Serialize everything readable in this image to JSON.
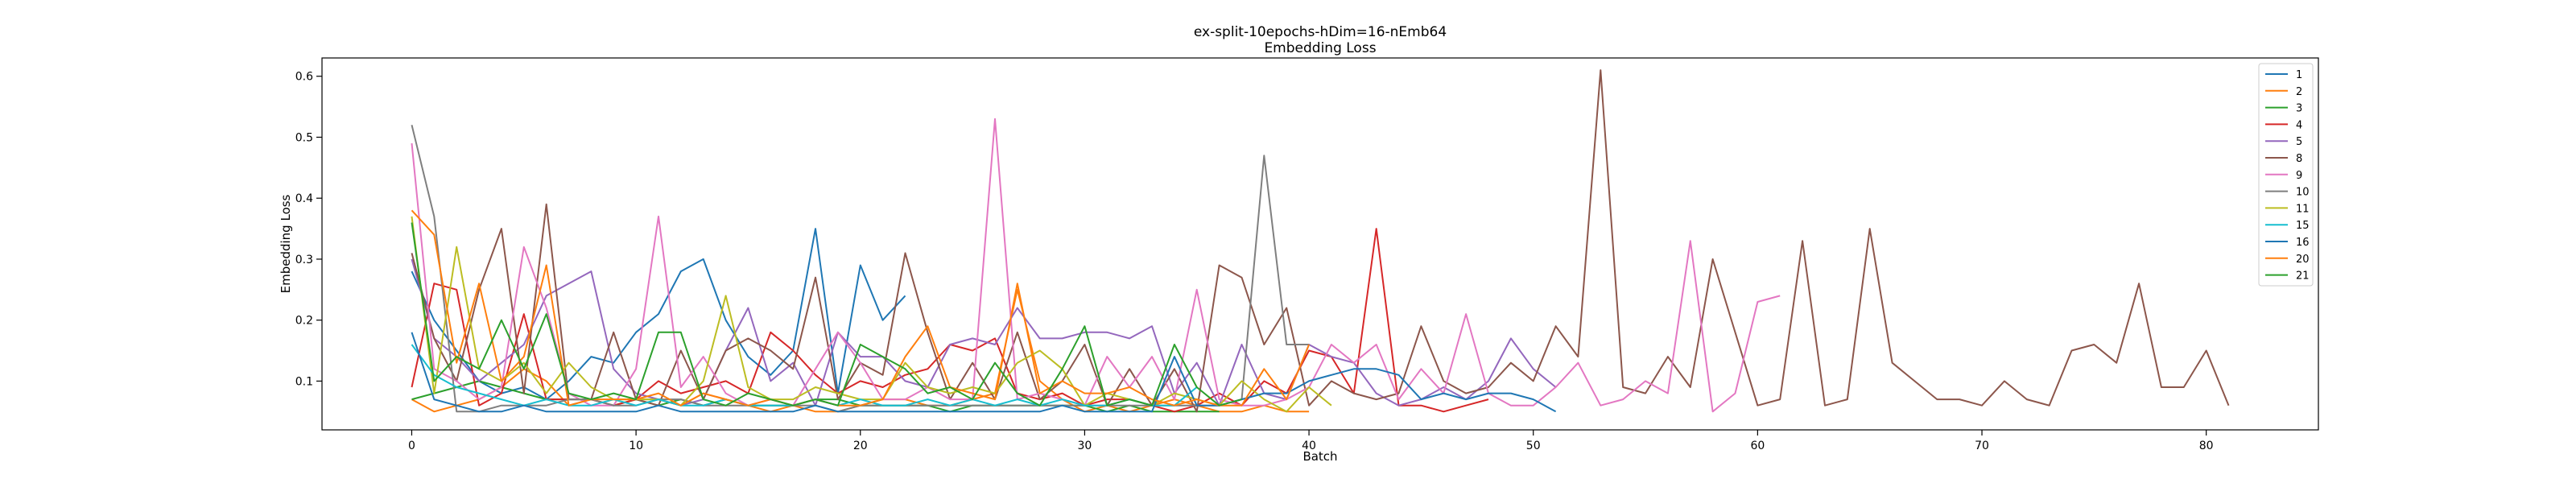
{
  "chart_data": {
    "type": "line",
    "title": "ex-split-10epochs-hDim=16-nEmb64",
    "subtitle": "Embedding Loss",
    "xlabel": "Batch",
    "ylabel": "Embedding Loss",
    "xlim": [
      -4,
      85
    ],
    "ylim": [
      0.02,
      0.63
    ],
    "xticks": [
      0,
      10,
      20,
      30,
      40,
      50,
      60,
      70,
      80
    ],
    "yticks": [
      0.1,
      0.2,
      0.3,
      0.4,
      0.5,
      0.6
    ],
    "xtick_labels": [
      "0",
      "10",
      "20",
      "30",
      "40",
      "50",
      "60",
      "70",
      "80"
    ],
    "ytick_labels": [
      "0.1",
      "0.2",
      "0.3",
      "0.4",
      "0.5",
      "0.6"
    ],
    "grid": false,
    "legend_position": "top-right",
    "series": [
      {
        "name": "1",
        "color": "#1f77b4",
        "x_start": 0,
        "values": [
          0.28,
          0.2,
          0.15,
          0.1,
          0.08,
          0.09,
          0.07,
          0.1,
          0.14,
          0.13,
          0.18,
          0.21,
          0.28,
          0.3,
          0.2,
          0.14,
          0.11,
          0.15,
          0.35,
          0.08,
          0.29,
          0.2,
          0.24
        ]
      },
      {
        "name": "2",
        "color": "#ff7f0e",
        "x_start": 0,
        "values": [
          0.07,
          0.05,
          0.06,
          0.07,
          0.09,
          0.12,
          0.1,
          0.06,
          0.07,
          0.06,
          0.07,
          0.07,
          0.06,
          0.08,
          0.07,
          0.06,
          0.05,
          0.06,
          0.05,
          0.05,
          0.06,
          0.07,
          0.07,
          0.06,
          0.06,
          0.07,
          0.08,
          0.25,
          0.1,
          0.07,
          0.05,
          0.06,
          0.05,
          0.06,
          0.07,
          0.06,
          0.05,
          0.05,
          0.06,
          0.05,
          0.05
        ]
      },
      {
        "name": "3",
        "color": "#2ca02c",
        "x_start": 0,
        "values": [
          0.07,
          0.08,
          0.09,
          0.1,
          0.09,
          0.08,
          0.07,
          0.07,
          0.07,
          0.06,
          0.07,
          0.06,
          0.07,
          0.06,
          0.07,
          0.06,
          0.06,
          0.06,
          0.07,
          0.07,
          0.06,
          0.06,
          0.06,
          0.06,
          0.05,
          0.06,
          0.06,
          0.06,
          0.06,
          0.06,
          0.06,
          0.05,
          0.06,
          0.05,
          0.05,
          0.05,
          0.05
        ]
      },
      {
        "name": "4",
        "color": "#d62728",
        "x_start": 0,
        "values": [
          0.09,
          0.26,
          0.25,
          0.06,
          0.08,
          0.21,
          0.07,
          0.07,
          0.07,
          0.06,
          0.07,
          0.1,
          0.08,
          0.09,
          0.1,
          0.08,
          0.18,
          0.15,
          0.11,
          0.08,
          0.1,
          0.09,
          0.11,
          0.12,
          0.16,
          0.15,
          0.17,
          0.08,
          0.07,
          0.08,
          0.06,
          0.07,
          0.07,
          0.06,
          0.05,
          0.06,
          0.08,
          0.06,
          0.1,
          0.08,
          0.15,
          0.14,
          0.08,
          0.35,
          0.06,
          0.06,
          0.05,
          0.06,
          0.07
        ]
      },
      {
        "name": "5",
        "color": "#9467bd",
        "x_start": 0,
        "values": [
          0.3,
          0.17,
          0.14,
          0.1,
          0.13,
          0.16,
          0.24,
          0.26,
          0.28,
          0.12,
          0.08,
          0.07,
          0.06,
          0.07,
          0.15,
          0.22,
          0.1,
          0.13,
          0.06,
          0.18,
          0.14,
          0.14,
          0.1,
          0.09,
          0.16,
          0.17,
          0.16,
          0.22,
          0.17,
          0.17,
          0.18,
          0.18,
          0.17,
          0.19,
          0.08,
          0.13,
          0.06,
          0.16,
          0.08,
          0.07,
          0.16,
          0.14,
          0.13,
          0.08,
          0.06,
          0.07,
          0.09,
          0.07,
          0.1,
          0.17,
          0.12,
          0.09
        ]
      },
      {
        "name": "8",
        "color": "#8c564b",
        "x_start": 0,
        "values": [
          0.31,
          0.17,
          0.1,
          0.25,
          0.35,
          0.08,
          0.39,
          0.07,
          0.07,
          0.18,
          0.07,
          0.06,
          0.15,
          0.07,
          0.15,
          0.17,
          0.15,
          0.12,
          0.27,
          0.07,
          0.13,
          0.11,
          0.31,
          0.18,
          0.07,
          0.13,
          0.07,
          0.18,
          0.07,
          0.1,
          0.16,
          0.06,
          0.12,
          0.06,
          0.12,
          0.05,
          0.29,
          0.27,
          0.16,
          0.22,
          0.06,
          0.1,
          0.08,
          0.07,
          0.08,
          0.19,
          0.1,
          0.08,
          0.09,
          0.13,
          0.1,
          0.19,
          0.14,
          0.61,
          0.09,
          0.08,
          0.14,
          0.09,
          0.3,
          0.18,
          0.06,
          0.07,
          0.33,
          0.06,
          0.07,
          0.35,
          0.13,
          0.1,
          0.07,
          0.07,
          0.06,
          0.1,
          0.07,
          0.06,
          0.15,
          0.16,
          0.13,
          0.26,
          0.09,
          0.09,
          0.15,
          0.06
        ]
      },
      {
        "name": "9",
        "color": "#e377c2",
        "x_start": 0,
        "values": [
          0.49,
          0.12,
          0.1,
          0.07,
          0.09,
          0.32,
          0.22,
          0.08,
          0.06,
          0.06,
          0.12,
          0.37,
          0.09,
          0.14,
          0.08,
          0.06,
          0.07,
          0.06,
          0.12,
          0.18,
          0.13,
          0.07,
          0.07,
          0.09,
          0.07,
          0.07,
          0.53,
          0.07,
          0.08,
          0.07,
          0.06,
          0.14,
          0.09,
          0.14,
          0.07,
          0.25,
          0.07,
          0.06,
          0.06,
          0.07,
          0.09,
          0.16,
          0.13,
          0.16,
          0.07,
          0.12,
          0.08,
          0.21,
          0.08,
          0.06,
          0.06,
          0.09,
          0.13,
          0.06,
          0.07,
          0.1,
          0.08,
          0.33,
          0.05,
          0.08,
          0.23,
          0.24
        ]
      },
      {
        "name": "10",
        "color": "#7f7f7f",
        "x_start": 0,
        "values": [
          0.52,
          0.37,
          0.05,
          0.05,
          0.06,
          0.06,
          0.06,
          0.07,
          0.07,
          0.06,
          0.06,
          0.07,
          0.07,
          0.06,
          0.06,
          0.06,
          0.06,
          0.06,
          0.06,
          0.05,
          0.06,
          0.06,
          0.06,
          0.06,
          0.06,
          0.06,
          0.06,
          0.06,
          0.06,
          0.06,
          0.06,
          0.06,
          0.06,
          0.06,
          0.06,
          0.06,
          0.06,
          0.07,
          0.47,
          0.16,
          0.16
        ]
      },
      {
        "name": "11",
        "color": "#bcbd22",
        "x_start": 0,
        "values": [
          0.37,
          0.08,
          0.32,
          0.12,
          0.1,
          0.13,
          0.08,
          0.13,
          0.09,
          0.07,
          0.07,
          0.07,
          0.06,
          0.1,
          0.24,
          0.09,
          0.07,
          0.07,
          0.09,
          0.08,
          0.07,
          0.07,
          0.13,
          0.09,
          0.08,
          0.09,
          0.08,
          0.13,
          0.15,
          0.12,
          0.06,
          0.08,
          0.07,
          0.06,
          0.08,
          0.07,
          0.06,
          0.1,
          0.07,
          0.05,
          0.09,
          0.06
        ]
      },
      {
        "name": "15",
        "color": "#17becf",
        "x_start": 0,
        "values": [
          0.16,
          0.11,
          0.09,
          0.08,
          0.07,
          0.06,
          0.07,
          0.06,
          0.06,
          0.07,
          0.06,
          0.07,
          0.06,
          0.06,
          0.07,
          0.06,
          0.06,
          0.06,
          0.07,
          0.06,
          0.07,
          0.06,
          0.06,
          0.07,
          0.06,
          0.07,
          0.06,
          0.07,
          0.06,
          0.07,
          0.06,
          0.06,
          0.07,
          0.06,
          0.06,
          0.09
        ]
      },
      {
        "name": "16",
        "color": "#1f77b4",
        "x_start": 0,
        "values": [
          0.18,
          0.07,
          0.06,
          0.05,
          0.05,
          0.06,
          0.05,
          0.05,
          0.05,
          0.05,
          0.05,
          0.06,
          0.05,
          0.05,
          0.05,
          0.05,
          0.05,
          0.05,
          0.06,
          0.05,
          0.05,
          0.05,
          0.05,
          0.05,
          0.05,
          0.05,
          0.05,
          0.05,
          0.05,
          0.06,
          0.05,
          0.05,
          0.05,
          0.05,
          0.14,
          0.06,
          0.06,
          0.07,
          0.08,
          0.08,
          0.1,
          0.11,
          0.12,
          0.12,
          0.11,
          0.07,
          0.08,
          0.07,
          0.08,
          0.08,
          0.07,
          0.05
        ]
      },
      {
        "name": "20",
        "color": "#ff7f0e",
        "x_start": 0,
        "values": [
          0.38,
          0.34,
          0.13,
          0.26,
          0.1,
          0.14,
          0.29,
          0.06,
          0.07,
          0.07,
          0.07,
          0.08,
          0.06,
          0.08,
          0.07,
          0.06,
          0.07,
          0.06,
          0.07,
          0.06,
          0.06,
          0.07,
          0.14,
          0.19,
          0.09,
          0.08,
          0.07,
          0.26,
          0.08,
          0.1,
          0.08,
          0.08,
          0.09,
          0.07,
          0.06,
          0.07,
          0.06,
          0.06,
          0.12,
          0.07,
          0.16
        ]
      },
      {
        "name": "21",
        "color": "#2ca02c",
        "x_start": 0,
        "values": [
          0.36,
          0.1,
          0.14,
          0.12,
          0.2,
          0.12,
          0.21,
          0.08,
          0.07,
          0.08,
          0.07,
          0.18,
          0.18,
          0.07,
          0.06,
          0.08,
          0.07,
          0.06,
          0.07,
          0.06,
          0.16,
          0.14,
          0.12,
          0.08,
          0.09,
          0.07,
          0.13,
          0.08,
          0.06,
          0.12,
          0.19,
          0.06,
          0.07,
          0.06,
          0.16,
          0.09,
          0.06,
          0.07
        ]
      }
    ]
  }
}
